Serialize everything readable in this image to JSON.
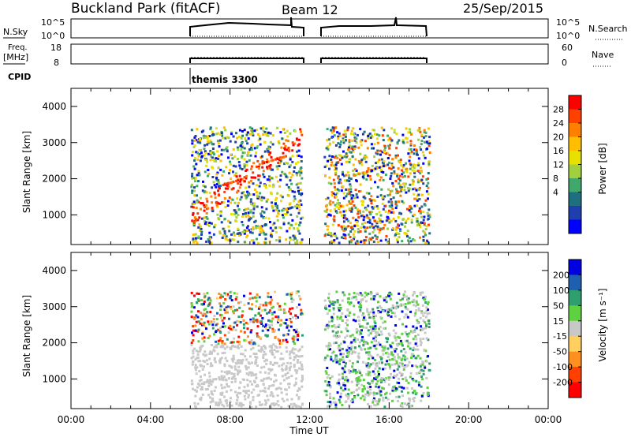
{
  "header": {
    "title": "Buckland Park (fitACF)",
    "beam": "Beam 12",
    "date": "25/Sep/2015"
  },
  "top_panels": {
    "nsky_label": "N.Sky",
    "nsky_left_ticks": [
      "10^5",
      "10^0"
    ],
    "nsky_right_ticks": [
      "10^5",
      "10^0"
    ],
    "nsearch_label": "N.Search",
    "freq_label_1": "Freq.",
    "freq_label_2": "[MHz]",
    "freq_left_ticks": [
      "18",
      "8"
    ],
    "nave_right_ticks": [
      "60",
      "0"
    ],
    "nave_label": "Nave",
    "cpid_label": "CPID",
    "cpid_text": "themis 3300"
  },
  "chart_data": [
    {
      "type": "heatmap",
      "name": "power",
      "ylabel": "Slant Range [km]",
      "y_ticks": [
        1000,
        2000,
        3000,
        4000
      ],
      "ylim": [
        180,
        4500
      ],
      "xlim": [
        0,
        24
      ],
      "colorbar_label": "Power [dB]",
      "colorbar_ticks": [
        "28",
        "24",
        "20",
        "16",
        "12",
        "8",
        "4"
      ],
      "colorbar_colors": [
        "#ff0000",
        "#ff4000",
        "#ff7f00",
        "#ffbf00",
        "#e8e000",
        "#a0d040",
        "#3fa86a",
        "#1f6f7f",
        "#1f3faf",
        "#0000ff"
      ],
      "data_windows_ut": [
        [
          6.0,
          11.6
        ],
        [
          12.7,
          18.0
        ]
      ]
    },
    {
      "type": "heatmap",
      "name": "velocity",
      "ylabel": "Slant Range [km]",
      "y_ticks": [
        1000,
        2000,
        3000,
        4000
      ],
      "ylim": [
        180,
        4500
      ],
      "xlim": [
        0,
        24
      ],
      "xlabel": "Time UT",
      "x_ticks": [
        "00:00",
        "04:00",
        "08:00",
        "12:00",
        "16:00",
        "20:00",
        "00:00"
      ],
      "colorbar_label": "Velocity [m s⁻¹]",
      "colorbar_ticks": [
        "200",
        "100",
        "50",
        "15",
        "-15",
        "-50",
        "-100",
        "-200"
      ],
      "colorbar_colors": [
        "#0000e0",
        "#1f5fb0",
        "#2f9f6f",
        "#5fd040",
        "#c8c8c8",
        "#ffd060",
        "#ff9020",
        "#ff4000",
        "#ff0000"
      ],
      "data_windows_ut": [
        [
          6.0,
          11.6
        ],
        [
          12.7,
          18.0
        ]
      ]
    }
  ]
}
